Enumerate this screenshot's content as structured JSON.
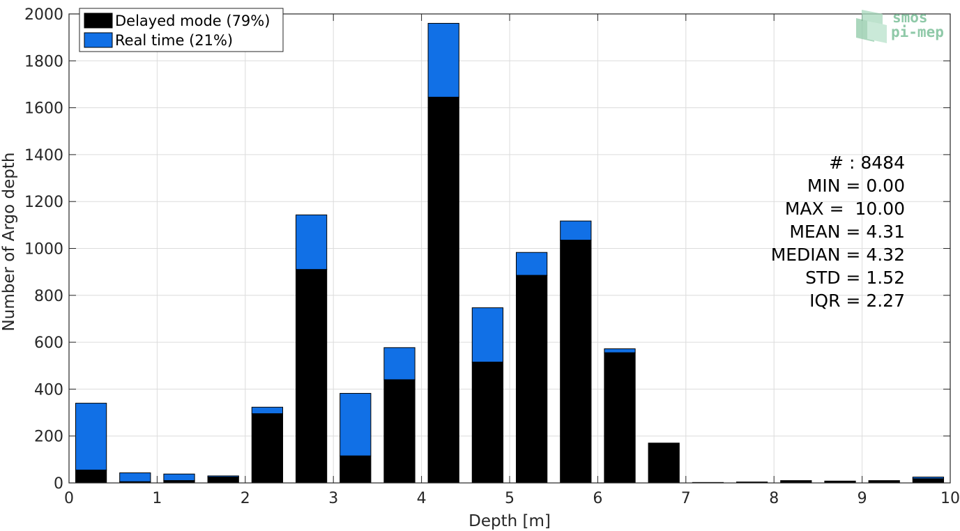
{
  "chart_data": {
    "type": "bar",
    "stacked": true,
    "xlabel": "Depth [m]",
    "ylabel": "Number of Argo depth",
    "xlim": [
      0,
      10
    ],
    "ylim": [
      0,
      2000
    ],
    "x_ticks": [
      "0",
      "1",
      "2",
      "3",
      "4",
      "5",
      "6",
      "7",
      "8",
      "9",
      "10"
    ],
    "y_ticks": [
      "0",
      "200",
      "400",
      "600",
      "800",
      "1000",
      "1200",
      "1400",
      "1600",
      "1800",
      "2000"
    ],
    "grid": true,
    "legend_position": "top-left",
    "x": [
      0.25,
      0.75,
      1.25,
      1.75,
      2.25,
      2.75,
      3.25,
      3.75,
      4.25,
      4.75,
      5.25,
      5.75,
      6.25,
      6.75,
      7.25,
      7.75,
      8.25,
      8.75,
      9.25,
      9.75
    ],
    "series": [
      {
        "name": "Delayed mode (79%)",
        "color": "#000000",
        "values": [
          55,
          5,
          10,
          25,
          295,
          910,
          115,
          440,
          1645,
          515,
          885,
          1035,
          555,
          170,
          2,
          4,
          10,
          8,
          10,
          18
        ]
      },
      {
        "name": "Real time (21%)",
        "color": "#1170e6",
        "values": [
          285,
          38,
          28,
          5,
          28,
          233,
          267,
          137,
          315,
          232,
          98,
          82,
          17,
          0,
          0,
          0,
          0,
          0,
          0,
          7
        ]
      }
    ],
    "stats": [
      "# : 8484",
      "MIN = 0.00",
      "MAX =  10.00",
      "MEAN = 4.31",
      "MEDIAN = 4.32",
      "STD = 1.52",
      "IQR = 2.27"
    ],
    "logo": [
      "smos",
      "pi-mep"
    ]
  }
}
